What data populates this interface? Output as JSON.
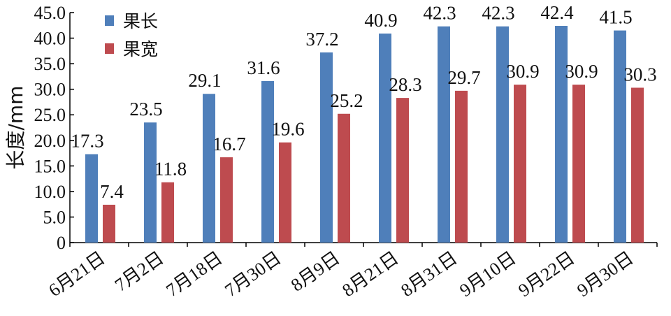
{
  "chart_data": {
    "type": "bar",
    "title": "",
    "xlabel": "",
    "ylabel": "长度/mm",
    "ylim": [
      0,
      45
    ],
    "yticks": [
      "0",
      "5.0",
      "10.0",
      "15.0",
      "20.0",
      "25.0",
      "30.0",
      "35.0",
      "40.0",
      "45.0"
    ],
    "categories": [
      "6月21日",
      "7月2日",
      "7月18日",
      "7月30日",
      "8月9日",
      "8月21日",
      "8月31日",
      "9月10日",
      "9月22日",
      "9月30日"
    ],
    "series": [
      {
        "name": "果长",
        "color": "#4f7fba",
        "values": [
          17.3,
          23.5,
          29.1,
          31.6,
          37.2,
          40.9,
          42.3,
          42.3,
          42.4,
          41.5
        ],
        "labels": [
          "17.3",
          "23.5",
          "29.1",
          "31.6",
          "37.2",
          "40.9",
          "42.3",
          "42.3",
          "42.4",
          "41.5"
        ]
      },
      {
        "name": "果宽",
        "color": "#be4b4f",
        "values": [
          7.4,
          11.8,
          16.7,
          19.6,
          25.2,
          28.3,
          29.7,
          30.9,
          30.9,
          30.3
        ],
        "labels": [
          "7.4",
          "11.8",
          "16.7",
          "19.6",
          "25.2",
          "28.3",
          "29.7",
          "30.9",
          "30.9",
          "30.3"
        ]
      }
    ],
    "legend": "top-left",
    "grid": false
  }
}
